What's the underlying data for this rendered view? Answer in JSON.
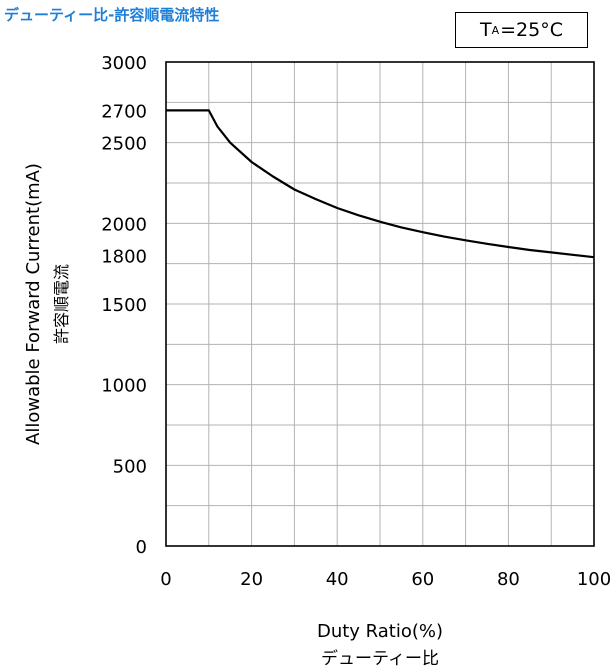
{
  "title": "デューティー比-許容順電流特性",
  "condition": {
    "symbol": "T",
    "subscript": "A",
    "value": "=25°C"
  },
  "chart_data": {
    "type": "line",
    "xlabel": "Duty Ratio(%)",
    "xlabel_sub": "デューティー比",
    "ylabel": "Allowable Forward Current(mA)",
    "ylabel_sub": "許容順電流",
    "xlim": [
      0,
      100
    ],
    "ylim": [
      0,
      3000
    ],
    "x_ticks": [
      0,
      20,
      40,
      60,
      80,
      100
    ],
    "y_ticks": [
      0,
      500,
      1000,
      1500,
      1800,
      2000,
      2500,
      2700,
      3000
    ],
    "grid": true,
    "series": [
      {
        "color": "#000000",
        "x": [
          0,
          10,
          12,
          15,
          20,
          25,
          30,
          35,
          40,
          45,
          50,
          55,
          60,
          65,
          70,
          75,
          80,
          85,
          90,
          95,
          100
        ],
        "y": [
          2700,
          2700,
          2600,
          2500,
          2380,
          2290,
          2210,
          2150,
          2095,
          2050,
          2010,
          1975,
          1945,
          1918,
          1895,
          1873,
          1853,
          1835,
          1820,
          1805,
          1790
        ]
      }
    ]
  }
}
